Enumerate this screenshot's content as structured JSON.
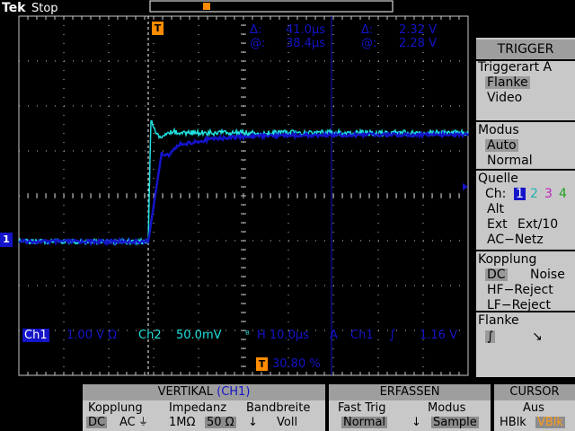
{
  "status": {
    "brand": "Tek",
    "run_state": "Stop"
  },
  "trigger_marker": "T",
  "channel_marker": "1",
  "cursor_readout": {
    "delta_time": "41.0µs",
    "at_time": "38.4µs",
    "delta_volt": "2.32 V",
    "at_volt": "2.28 V",
    "delta_symbol": "Δ:",
    "at_symbol": "@:"
  },
  "settings": {
    "ch1_label": "Ch1",
    "ch1_scale": "1.00 V Ω",
    "ch2_label": "Ch2",
    "ch2_scale": "50.0mV",
    "ch2_bw": "ᴮ",
    "horizontal": "H 10.0µs",
    "trig_mode": "A",
    "trig_source": "Ch1",
    "trig_slope": "∫",
    "trig_level": "1.16 V",
    "trig_pos_icon": "T",
    "trig_pos": "30.80 %"
  },
  "side_menu": {
    "title": "TRIGGER",
    "triggerart": {
      "label": "Triggerart A",
      "options": [
        "Flanke",
        "Video"
      ],
      "selected": "Flanke"
    },
    "modus": {
      "label": "Modus",
      "options": [
        "Auto",
        "Normal"
      ],
      "selected": "Auto"
    },
    "quelle": {
      "label": "Quelle",
      "ch_label": "Ch:",
      "channels": [
        "1",
        "2",
        "3",
        "4"
      ],
      "alt": "Alt",
      "ext": "Ext",
      "ext10": "Ext/10",
      "ac_netz": "AC−Netz"
    },
    "kopplung": {
      "label": "Kopplung",
      "dc": "DC",
      "noise": "Noise",
      "hf": "HF−Reject",
      "lf": "LF−Reject"
    },
    "flanke": {
      "label": "Flanke",
      "rise": "∫",
      "fall": "↘"
    }
  },
  "bottom_menu": {
    "vertikal": {
      "title": "VERTIKAL",
      "title_ch": "(CH1)",
      "kopplung": {
        "label": "Kopplung",
        "dc": "DC",
        "ac": "AC",
        "gnd": "⏚"
      },
      "impedanz": {
        "label": "Impedanz",
        "high": "1MΩ",
        "low": "50 Ω"
      },
      "bandbreite": {
        "label": "Bandbreite",
        "value": "Voll"
      }
    },
    "erfassen": {
      "title": "ERFASSEN",
      "fast_trig": {
        "label": "Fast Trig",
        "value": "Normal"
      },
      "modus": {
        "label": "Modus",
        "value": "Sample"
      }
    },
    "cursor": {
      "title": "CURSOR",
      "aus": "Aus",
      "hblk": "HBlk",
      "vblk": "VBlk"
    }
  },
  "colors": {
    "ch1": "#1414c8",
    "ch2": "#20e0e0",
    "trigger": "#ff8c00",
    "cursor_vblk": "#ff9a1a",
    "grid": "#c8c8c8"
  },
  "waveforms": {
    "time_per_div_us": 10.0,
    "ch1_volts_per_div": 1.0,
    "ch1_pre_trigger_level_v": -0.95,
    "ch1_settled_level_v": 1.4,
    "ch2_settled_level_mv": 80
  }
}
